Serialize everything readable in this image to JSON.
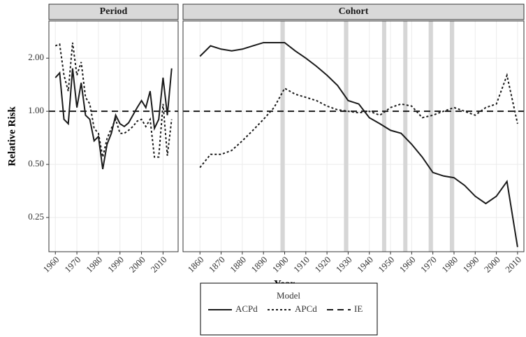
{
  "x_label": "Year",
  "y_label": "Relative Risk",
  "legend_title": "Model",
  "chart_data": [
    {
      "type": "line",
      "title": "Period",
      "log_y": true,
      "grid": true,
      "xlim": [
        1957,
        2017
      ],
      "xticks": [
        1960,
        1970,
        1980,
        1990,
        2000,
        2010
      ],
      "ylim": [
        0.16,
        3.25
      ],
      "yticks": [
        0.25,
        {
          "value": 0.5,
          "label": "0.50"
        },
        {
          "value": 1,
          "label": "1.00"
        },
        {
          "value": 2,
          "label": "2.00"
        }
      ],
      "series": [
        {
          "name": "ACPd",
          "color": "#1a1a1a",
          "dash": "solid",
          "x": [
            1960,
            1962,
            1964,
            1966,
            1968,
            1970,
            1972,
            1974,
            1976,
            1978,
            1980,
            1982,
            1984,
            1986,
            1988,
            1990,
            1992,
            1994,
            1996,
            1998,
            2000,
            2002,
            2004,
            2006,
            2008,
            2010,
            2012,
            2014
          ],
          "values": [
            1.55,
            1.65,
            0.9,
            0.85,
            1.75,
            1.05,
            1.45,
            0.95,
            0.9,
            0.68,
            0.72,
            0.47,
            0.65,
            0.75,
            0.95,
            0.85,
            0.82,
            0.86,
            0.95,
            1.05,
            1.15,
            1.05,
            1.3,
            0.8,
            0.9,
            1.55,
            0.95,
            1.75
          ]
        },
        {
          "name": "APCd",
          "color": "#1a1a1a",
          "dash": "dotted",
          "x": [
            1960,
            1962,
            1964,
            1966,
            1968,
            1970,
            1972,
            1974,
            1976,
            1978,
            1980,
            1982,
            1984,
            1986,
            1988,
            1990,
            1992,
            1994,
            1996,
            1998,
            2000,
            2002,
            2004,
            2006,
            2008,
            2010,
            2012,
            2014
          ],
          "values": [
            2.35,
            2.4,
            1.6,
            1.3,
            2.45,
            1.6,
            1.9,
            1.2,
            1.1,
            0.8,
            0.75,
            0.55,
            0.7,
            0.8,
            0.9,
            0.75,
            0.75,
            0.78,
            0.82,
            0.88,
            0.9,
            0.82,
            0.9,
            0.55,
            0.55,
            1.1,
            0.56,
            0.9
          ]
        },
        {
          "name": "IE",
          "color": "#1a1a1a",
          "dash": "dashed",
          "x": [
            1957,
            2017
          ],
          "values": [
            1,
            1
          ]
        }
      ]
    },
    {
      "type": "line",
      "title": "Cohort",
      "log_y": true,
      "grid": true,
      "xlim": [
        1852,
        2013
      ],
      "xticks": [
        1860,
        1870,
        1880,
        1890,
        1900,
        1910,
        1920,
        1930,
        1940,
        1950,
        1960,
        1970,
        1980,
        1990,
        2000,
        2010
      ],
      "ylim": [
        0.16,
        3.25
      ],
      "yticks": [
        0.25,
        {
          "value": 0.5,
          "label": "0.50"
        },
        {
          "value": 1,
          "label": "1.00"
        },
        {
          "value": 2,
          "label": "2.00"
        }
      ],
      "shaded_years": [
        1899,
        1929,
        1947,
        1957,
        1969,
        1979
      ],
      "series": [
        {
          "name": "ACPd",
          "color": "#1a1a1a",
          "dash": "solid",
          "x": [
            1860,
            1865,
            1870,
            1875,
            1880,
            1885,
            1890,
            1895,
            1900,
            1905,
            1910,
            1915,
            1920,
            1925,
            1930,
            1935,
            1940,
            1945,
            1950,
            1955,
            1960,
            1965,
            1970,
            1975,
            1980,
            1985,
            1990,
            1995,
            2000,
            2005,
            2010
          ],
          "values": [
            2.05,
            2.35,
            2.25,
            2.2,
            2.25,
            2.35,
            2.45,
            2.45,
            2.45,
            2.2,
            2.0,
            1.8,
            1.6,
            1.4,
            1.15,
            1.1,
            0.92,
            0.85,
            0.78,
            0.75,
            0.65,
            0.55,
            0.45,
            0.43,
            0.42,
            0.38,
            0.33,
            0.3,
            0.33,
            0.4,
            0.17
          ]
        },
        {
          "name": "APCd",
          "color": "#1a1a1a",
          "dash": "dotted",
          "x": [
            1860,
            1865,
            1870,
            1875,
            1880,
            1885,
            1890,
            1895,
            1900,
            1905,
            1910,
            1915,
            1920,
            1925,
            1930,
            1935,
            1940,
            1945,
            1950,
            1955,
            1960,
            1965,
            1970,
            1975,
            1980,
            1985,
            1990,
            1995,
            2000,
            2005,
            2010
          ],
          "values": [
            0.48,
            0.57,
            0.57,
            0.6,
            0.68,
            0.78,
            0.9,
            1.05,
            1.35,
            1.25,
            1.2,
            1.15,
            1.07,
            1.02,
            1.0,
            0.98,
            1.0,
            0.95,
            1.05,
            1.1,
            1.07,
            0.92,
            0.95,
            1.0,
            1.05,
            1.0,
            0.95,
            1.05,
            1.1,
            1.6,
            0.85
          ]
        },
        {
          "name": "IE",
          "color": "#1a1a1a",
          "dash": "dashed",
          "x": [
            1852,
            2013
          ],
          "values": [
            1,
            1
          ]
        }
      ]
    }
  ]
}
